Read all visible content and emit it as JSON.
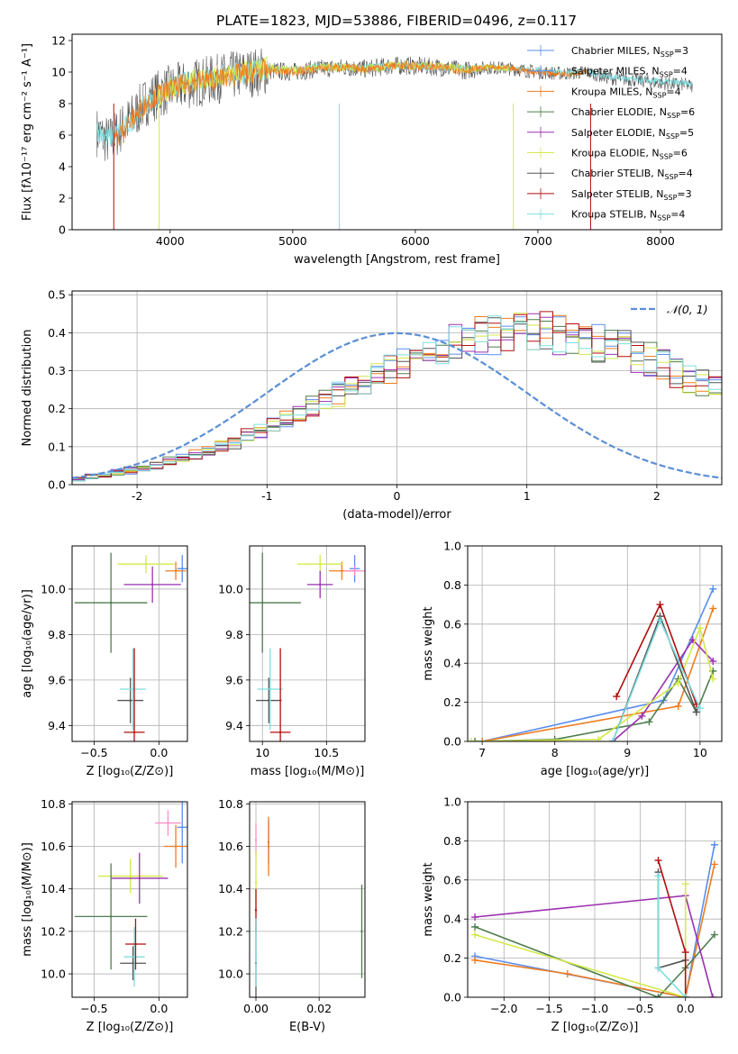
{
  "figure_title": "PLATE=1823, MJD=53886, FIBERID=0496, z=0.117",
  "colors": {
    "chabrier_miles": "#5b8def",
    "salpeter_miles": "#5b8def",
    "kroupa_miles": "#f07c1f",
    "chabrier_elodie": "#4e7d4e",
    "salpeter_elodie": "#9b30b0",
    "kroupa_elodie": "#d4e84a",
    "chabrier_stelib": "#555555",
    "salpeter_stelib": "#b00f0f",
    "kroupa_stelib": "#7fdde0",
    "gaussian": "#5b8fd6",
    "pink": "#ff8fc8"
  },
  "legend": [
    {
      "key": "chabrier_miles",
      "label": "Chabrier MILES, N",
      "sub": "SSP",
      "suffix": "=3"
    },
    {
      "key": "salpeter_miles",
      "label": "Salpeter MILES, N",
      "sub": "SSP",
      "suffix": "=4"
    },
    {
      "key": "kroupa_miles",
      "label": "Kroupa MILES, N",
      "sub": "SSP",
      "suffix": "=4"
    },
    {
      "key": "chabrier_elodie",
      "label": "Chabrier ELODIE, N",
      "sub": "SSP",
      "suffix": "=6"
    },
    {
      "key": "salpeter_elodie",
      "label": "Salpeter ELODIE, N",
      "sub": "SSP",
      "suffix": "=5"
    },
    {
      "key": "kroupa_elodie",
      "label": "Kroupa ELODIE, N",
      "sub": "SSP",
      "suffix": "=6"
    },
    {
      "key": "chabrier_stelib",
      "label": "Chabrier STELIB, N",
      "sub": "SSP",
      "suffix": "=4"
    },
    {
      "key": "salpeter_stelib",
      "label": "Salpeter STELIB, N",
      "sub": "SSP",
      "suffix": "=3"
    },
    {
      "key": "kroupa_stelib",
      "label": "Kroupa STELIB, N",
      "sub": "SSP",
      "suffix": "=4"
    }
  ],
  "chart_data": [
    {
      "id": "spectrum",
      "type": "line",
      "xlabel": "wavelength [Angstrom, rest frame]",
      "ylabel": "Flux [fλ10⁻¹⁷ erg cm⁻² s⁻¹ A⁻¹]",
      "xlim": [
        3200,
        8500
      ],
      "ylim": [
        0,
        12.4
      ],
      "xticks": [
        4000,
        5000,
        6000,
        7000,
        8000
      ],
      "yticks": [
        0,
        2,
        4,
        6,
        8,
        10,
        12
      ],
      "series": [
        {
          "key": "chabrier_stelib",
          "x": [
            3400,
            3500,
            3600,
            3700,
            3800,
            3900,
            4000,
            4200,
            4400,
            4600,
            4800,
            5000,
            5200,
            5400,
            5600,
            5800,
            6000,
            6200,
            6400,
            6600,
            6800,
            7000,
            7200,
            7400,
            7600,
            7800,
            8000,
            8200,
            8260
          ],
          "y": [
            6.2,
            5.6,
            6.4,
            7.2,
            8.1,
            8.6,
            8.9,
            9.3,
            9.6,
            9.9,
            10.1,
            10.0,
            10.2,
            10.3,
            10.2,
            10.4,
            10.4,
            10.3,
            10.1,
            10.3,
            10.2,
            10.0,
            9.9,
            10.0,
            9.6,
            9.5,
            9.3,
            9.2,
            9.1
          ]
        },
        {
          "key": "kroupa_stelib",
          "x": [
            3400,
            3500,
            3600,
            3700,
            3800,
            3900,
            4000,
            4200,
            4400,
            4600,
            4800,
            5000,
            5200,
            5400,
            5600,
            5800,
            6000,
            6200,
            6400,
            6600,
            6800,
            7000,
            7200,
            7400,
            7600,
            7800,
            8000,
            8200,
            8260
          ],
          "y": [
            6.3,
            5.8,
            6.3,
            7.0,
            7.9,
            8.5,
            9.0,
            9.5,
            9.7,
            10.0,
            10.2,
            10.1,
            10.3,
            10.3,
            10.3,
            10.4,
            10.4,
            10.3,
            10.2,
            10.3,
            10.2,
            10.1,
            10.0,
            10.0,
            9.7,
            9.5,
            9.4,
            9.3,
            9.2
          ]
        },
        {
          "key": "kroupa_elodie",
          "x": [
            3900,
            4000,
            4200,
            4400,
            4600,
            4800,
            5000,
            5200,
            5400,
            5600,
            5800,
            6000,
            6200,
            6400,
            6600,
            6800
          ],
          "y": [
            8.5,
            9.0,
            9.5,
            9.8,
            10.0,
            10.3,
            10.1,
            10.3,
            10.3,
            10.2,
            10.4,
            10.4,
            10.4,
            10.2,
            10.3,
            10.2
          ]
        },
        {
          "key": "kroupa_miles",
          "x": [
            3540,
            3600,
            3700,
            3800,
            3900,
            4000,
            4200,
            4400,
            4600,
            4800,
            5000,
            5200,
            5400,
            5600,
            5800,
            6000,
            6200,
            6400,
            6600,
            6800,
            7000,
            7200,
            7400
          ],
          "y": [
            5.6,
            6.2,
            7.1,
            8.0,
            8.6,
            8.9,
            9.4,
            9.6,
            9.9,
            10.1,
            10.0,
            10.2,
            10.3,
            10.2,
            10.4,
            10.4,
            10.3,
            10.1,
            10.3,
            10.2,
            10.0,
            9.9,
            10.0
          ]
        }
      ]
    },
    {
      "id": "residuals",
      "type": "histogram",
      "xlabel": "(data-model)/error",
      "ylabel": "Normed distribution",
      "xlim": [
        -2.5,
        2.5
      ],
      "ylim": [
        0,
        0.51
      ],
      "xticks": [
        -2,
        -1,
        0,
        1,
        2
      ],
      "yticks": [
        0.0,
        0.1,
        0.2,
        0.3,
        0.4,
        0.5
      ],
      "legend_label": "𝒩(0, 1)",
      "legend_position": "top-right",
      "bin_width": 0.1,
      "bin_start": -2.5,
      "base_values": [
        0.016,
        0.02,
        0.026,
        0.031,
        0.037,
        0.044,
        0.051,
        0.06,
        0.069,
        0.08,
        0.09,
        0.103,
        0.116,
        0.129,
        0.143,
        0.158,
        0.174,
        0.19,
        0.206,
        0.223,
        0.24,
        0.257,
        0.274,
        0.29,
        0.306,
        0.321,
        0.335,
        0.348,
        0.36,
        0.37,
        0.379,
        0.386,
        0.392,
        0.396,
        0.398,
        0.399,
        0.398,
        0.395,
        0.39,
        0.383,
        0.375,
        0.365,
        0.354,
        0.342,
        0.328,
        0.313,
        0.298,
        0.282,
        0.265,
        0.248,
        0.231,
        0.214,
        0.197,
        0.18,
        0.164,
        0.149,
        0.134,
        0.12,
        0.107,
        0.095,
        0.084,
        0.074,
        0.065,
        0.056,
        0.049,
        0.042,
        0.036,
        0.031,
        0.026,
        0.022
      ],
      "series_keys": [
        "chabrier_miles",
        "kroupa_miles",
        "chabrier_elodie",
        "salpeter_elodie",
        "kroupa_elodie",
        "chabrier_stelib",
        "salpeter_stelib",
        "kroupa_stelib"
      ]
    },
    {
      "id": "age_vs_z",
      "type": "errorbar",
      "xlabel": "Z [log₁₀(Z/Z⊙)]",
      "ylabel": "age  [log₁₀(age/yr)]",
      "xlim": [
        -0.67,
        0.22
      ],
      "ylim": [
        9.33,
        10.19
      ],
      "xticks": [
        -0.5,
        0.0
      ],
      "xtick_labels": [
        "−0.5",
        "0.0"
      ],
      "yticks": [
        9.4,
        9.6,
        9.8,
        10.0
      ],
      "points": [
        {
          "key": "chabrier_miles",
          "x": 0.18,
          "xerr": 0.04,
          "y": 10.09,
          "yerr": 0.06
        },
        {
          "key": "kroupa_miles",
          "x": 0.13,
          "xerr": 0.08,
          "y": 10.08,
          "yerr": 0.04
        },
        {
          "key": "kroupa_elodie",
          "x": -0.1,
          "xerr": 0.22,
          "y": 10.11,
          "yerr": 0.04
        },
        {
          "key": "salpeter_elodie",
          "x": -0.05,
          "xerr": 0.22,
          "y": 10.02,
          "yerr": 0.08
        },
        {
          "key": "chabrier_elodie",
          "x": -0.37,
          "xerr": 0.28,
          "y": 9.94,
          "yerr": 0.22
        },
        {
          "key": "chabrier_stelib",
          "x": -0.22,
          "xerr": 0.1,
          "y": 9.51,
          "yerr": 0.1
        },
        {
          "key": "kroupa_stelib",
          "x": -0.2,
          "xerr": 0.1,
          "y": 9.56,
          "yerr": 0.18
        },
        {
          "key": "salpeter_stelib",
          "x": -0.19,
          "xerr": 0.08,
          "y": 9.37,
          "yerr": 0.37
        }
      ]
    },
    {
      "id": "age_vs_mass",
      "type": "errorbar",
      "xlabel": "mass [log₁₀(M/M⊙)]",
      "ylabel": "",
      "xlim": [
        9.9,
        10.8
      ],
      "ylim": [
        9.33,
        10.19
      ],
      "xticks": [
        10.0,
        10.5
      ],
      "yticks": [
        9.4,
        9.6,
        9.8,
        10.0
      ],
      "points": [
        {
          "key": "chabrier_miles",
          "x": 10.72,
          "xerr": 0.04,
          "y": 10.09,
          "yerr": 0.06
        },
        {
          "key": "kroupa_miles",
          "x": 10.62,
          "xerr": 0.1,
          "y": 10.08,
          "yerr": 0.04
        },
        {
          "key": "pink",
          "x": 10.72,
          "xerr": 0.08,
          "y": 10.08,
          "yerr": 0.02
        },
        {
          "key": "kroupa_elodie",
          "x": 10.45,
          "xerr": 0.18,
          "y": 10.11,
          "yerr": 0.04
        },
        {
          "key": "salpeter_elodie",
          "x": 10.45,
          "xerr": 0.1,
          "y": 10.02,
          "yerr": 0.06
        },
        {
          "key": "chabrier_elodie",
          "x": 10.0,
          "xerr": 0.3,
          "y": 9.94,
          "yerr": 0.22
        },
        {
          "key": "chabrier_stelib",
          "x": 10.05,
          "xerr": 0.1,
          "y": 9.51,
          "yerr": 0.1
        },
        {
          "key": "kroupa_stelib",
          "x": 10.06,
          "xerr": 0.1,
          "y": 9.56,
          "yerr": 0.18
        },
        {
          "key": "salpeter_stelib",
          "x": 10.14,
          "xerr": 0.08,
          "y": 9.37,
          "yerr": 0.37
        }
      ]
    },
    {
      "id": "weight_vs_age",
      "type": "line",
      "xlabel": "age  [log₁₀(age/yr)]",
      "ylabel": "mass weight",
      "xlim": [
        6.8,
        10.3
      ],
      "ylim": [
        0,
        1.0
      ],
      "xticks": [
        7,
        8,
        9,
        10
      ],
      "yticks": [
        0.0,
        0.2,
        0.4,
        0.6,
        0.8,
        1.0
      ],
      "series": [
        {
          "key": "chabrier_miles",
          "x": [
            7.0,
            9.5,
            10.18
          ],
          "y": [
            0.0,
            0.21,
            0.78
          ]
        },
        {
          "key": "kroupa_miles",
          "x": [
            7.0,
            9.7,
            10.18
          ],
          "y": [
            0.0,
            0.18,
            0.68
          ]
        },
        {
          "key": "chabrier_elodie",
          "x": [
            6.9,
            8.0,
            9.3,
            9.7,
            9.95,
            10.18
          ],
          "y": [
            0.0,
            0.01,
            0.1,
            0.32,
            0.15,
            0.36
          ]
        },
        {
          "key": "salpeter_elodie",
          "x": [
            8.8,
            9.2,
            9.9,
            10.18
          ],
          "y": [
            0.0,
            0.13,
            0.52,
            0.41
          ]
        },
        {
          "key": "kroupa_elodie",
          "x": [
            6.85,
            8.6,
            9.7,
            10.0,
            10.18
          ],
          "y": [
            0.0,
            0.01,
            0.3,
            0.58,
            0.32
          ]
        },
        {
          "key": "chabrier_stelib",
          "x": [
            8.8,
            9.45,
            9.95
          ],
          "y": [
            0.0,
            0.64,
            0.15
          ]
        },
        {
          "key": "salpeter_stelib",
          "x": [
            8.85,
            9.45,
            9.95
          ],
          "y": [
            0.23,
            0.7,
            0.19
          ]
        },
        {
          "key": "kroupa_stelib",
          "x": [
            8.8,
            9.45,
            10.0
          ],
          "y": [
            0.0,
            0.62,
            0.17
          ]
        }
      ]
    },
    {
      "id": "mass_vs_z",
      "type": "errorbar",
      "xlabel": "Z [log₁₀(Z/Z⊙)]",
      "ylabel": "mass [log₁₀(M/M⊙)]",
      "xlim": [
        -0.67,
        0.22
      ],
      "ylim": [
        9.89,
        10.81
      ],
      "xticks": [
        -0.5,
        0.0
      ],
      "xtick_labels": [
        "−0.5",
        "0.0"
      ],
      "yticks": [
        10.0,
        10.2,
        10.4,
        10.6,
        10.8
      ],
      "points": [
        {
          "key": "chabrier_miles",
          "x": 0.18,
          "xerr": 0.04,
          "y": 10.69,
          "yerr": 0.17
        },
        {
          "key": "kroupa_miles",
          "x": 0.13,
          "xerr": 0.09,
          "y": 10.6,
          "yerr": 0.1
        },
        {
          "key": "pink",
          "x": 0.07,
          "xerr": 0.1,
          "y": 10.71,
          "yerr": 0.06
        },
        {
          "key": "kroupa_elodie",
          "x": -0.22,
          "xerr": 0.25,
          "y": 10.46,
          "yerr": 0.08
        },
        {
          "key": "salpeter_elodie",
          "x": -0.15,
          "xerr": 0.22,
          "y": 10.45,
          "yerr": 0.12
        },
        {
          "key": "chabrier_elodie",
          "x": -0.37,
          "xerr": 0.28,
          "y": 10.27,
          "yerr": 0.25
        },
        {
          "key": "chabrier_stelib",
          "x": -0.2,
          "xerr": 0.1,
          "y": 10.05,
          "yerr": 0.08
        },
        {
          "key": "kroupa_stelib",
          "x": -0.19,
          "xerr": 0.08,
          "y": 10.08,
          "yerr": 0.14
        },
        {
          "key": "salpeter_stelib",
          "x": -0.18,
          "xerr": 0.08,
          "y": 10.14,
          "yerr": 0.12
        }
      ]
    },
    {
      "id": "mass_vs_ebv",
      "type": "errorbar",
      "xlabel": "E(B-V)",
      "ylabel": "",
      "xlim": [
        -0.002,
        0.0345
      ],
      "ylim": [
        9.89,
        10.81
      ],
      "xticks": [
        0.0,
        0.02
      ],
      "xtick_labels": [
        "0.00",
        "0.02"
      ],
      "yticks": [
        10.0,
        10.2,
        10.4,
        10.6,
        10.8
      ],
      "points": [
        {
          "key": "chabrier_miles",
          "x": 0.004,
          "xerr": 0.0,
          "y": 10.62,
          "yerr": 0.1
        },
        {
          "key": "kroupa_miles",
          "x": 0.004,
          "xerr": 0.0,
          "y": 10.6,
          "yerr": 0.14
        },
        {
          "key": "pink",
          "x": 0.0,
          "xerr": 0.0,
          "y": 10.63,
          "yerr": 0.08
        },
        {
          "key": "kroupa_elodie",
          "x": 0.0,
          "xerr": 0.0,
          "y": 10.43,
          "yerr": 0.15
        },
        {
          "key": "salpeter_stelib",
          "x": 0.0,
          "xerr": 0.0,
          "y": 10.3,
          "yerr": 0.1
        },
        {
          "key": "chabrier_stelib",
          "x": 0.0,
          "xerr": 0.0,
          "y": 10.05,
          "yerr": 0.2
        },
        {
          "key": "kroupa_stelib",
          "x": 0.0,
          "xerr": 0.0,
          "y": 10.1,
          "yerr": 0.16
        },
        {
          "key": "chabrier_elodie",
          "x": 0.0335,
          "xerr": 0.0,
          "y": 10.2,
          "yerr": 0.22
        }
      ]
    },
    {
      "id": "weight_vs_z",
      "type": "line",
      "xlabel": "Z [log₁₀(Z/Z⊙)]",
      "ylabel": "mass weight",
      "xlim": [
        -2.4,
        0.4
      ],
      "ylim": [
        0,
        1.0
      ],
      "xticks": [
        -2.0,
        -1.5,
        -1.0,
        -0.5,
        0.0
      ],
      "xtick_labels": [
        "−2.0",
        "−1.5",
        "−1.0",
        "−0.5",
        "0.0"
      ],
      "yticks": [
        0.0,
        0.2,
        0.4,
        0.6,
        0.8,
        1.0
      ],
      "series": [
        {
          "key": "chabrier_miles",
          "x": [
            -2.32,
            0.0,
            0.32
          ],
          "y": [
            0.21,
            0.0,
            0.78
          ]
        },
        {
          "key": "kroupa_miles",
          "x": [
            -2.32,
            -1.3,
            0.0,
            0.32
          ],
          "y": [
            0.19,
            0.12,
            0.0,
            0.68
          ]
        },
        {
          "key": "chabrier_elodie",
          "x": [
            -2.32,
            -0.3,
            0.0,
            0.32
          ],
          "y": [
            0.36,
            0.0,
            0.15,
            0.32
          ]
        },
        {
          "key": "salpeter_elodie",
          "x": [
            -2.32,
            0.0,
            0.3
          ],
          "y": [
            0.41,
            0.52,
            0.0
          ]
        },
        {
          "key": "kroupa_elodie",
          "x": [
            -2.32,
            0.0,
            0.0
          ],
          "y": [
            0.32,
            0.0,
            0.58
          ]
        },
        {
          "key": "chabrier_stelib",
          "x": [
            -0.3,
            -0.3,
            0.0
          ],
          "y": [
            0.64,
            0.15,
            0.19
          ]
        },
        {
          "key": "salpeter_stelib",
          "x": [
            -0.3,
            0.0,
            0.0
          ],
          "y": [
            0.7,
            0.23,
            0.0
          ]
        },
        {
          "key": "kroupa_stelib",
          "x": [
            -0.3,
            -0.3,
            0.0
          ],
          "y": [
            0.62,
            0.15,
            0.0
          ]
        }
      ]
    }
  ]
}
